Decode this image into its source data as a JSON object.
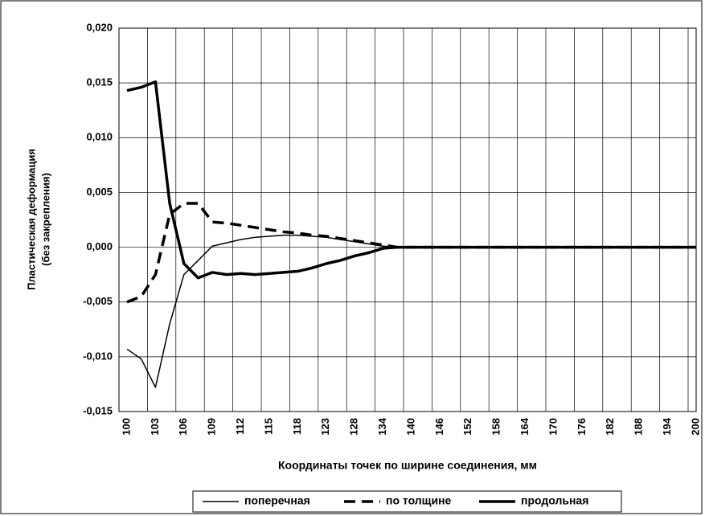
{
  "chart_data": {
    "type": "line",
    "y_label": [
      "Пластическая деформация",
      "(без закрепления)"
    ],
    "x_label": "Координаты точек по ширине соединения, мм",
    "categories": [
      "100",
      null,
      "103",
      null,
      "106",
      null,
      "109",
      null,
      "112",
      null,
      "115",
      null,
      "118",
      null,
      "123",
      null,
      "128",
      null,
      "134",
      null,
      "140",
      null,
      "146",
      null,
      "152",
      null,
      "158",
      null,
      "164",
      null,
      "170",
      null,
      "176",
      null,
      "182",
      null,
      "188",
      null,
      "194",
      null,
      "200"
    ],
    "series": [
      {
        "name": "поперечная",
        "color": "#000000",
        "style": "solid",
        "width": 1.5,
        "values": [
          -0.0093,
          -0.0102,
          -0.0128,
          -0.007,
          -0.0025,
          -0.0012,
          0.0001,
          0.0004,
          0.0007,
          0.0009,
          0.001,
          0.0011,
          0.0011,
          0.001,
          0.0009,
          0.0007,
          0.0005,
          0.0003,
          0.0001,
          0,
          0,
          0,
          0,
          0,
          0,
          0,
          0,
          0,
          0,
          0,
          0,
          0,
          0,
          0,
          0,
          0,
          0,
          0,
          0,
          0,
          0
        ]
      },
      {
        "name": "по толщине",
        "color": "#000000",
        "style": "dashed",
        "width": 3.5,
        "values": [
          -0.005,
          -0.0045,
          -0.0025,
          0.003,
          0.004,
          0.004,
          0.0023,
          0.0022,
          0.002,
          0.0018,
          0.0016,
          0.0014,
          0.0013,
          0.0011,
          0.001,
          0.0008,
          0.0006,
          0.0004,
          0.0002,
          0,
          0,
          0,
          0,
          0,
          0,
          0,
          0,
          0,
          0,
          0,
          0,
          0,
          0,
          0,
          0,
          0,
          0,
          0,
          0,
          0,
          0
        ]
      },
      {
        "name": "продольная",
        "color": "#000000",
        "style": "solid",
        "width": 3.5,
        "values": [
          0.0143,
          0.0146,
          0.0151,
          0.004,
          -0.0015,
          -0.0028,
          -0.0023,
          -0.0025,
          -0.0024,
          -0.0025,
          -0.0024,
          -0.0023,
          -0.0022,
          -0.0019,
          -0.0015,
          -0.0012,
          -0.0008,
          -0.0005,
          -0.0001,
          0,
          0,
          0,
          0,
          0,
          0,
          0,
          0,
          0,
          0,
          0,
          0,
          0,
          0,
          0,
          0,
          0,
          0,
          0,
          0,
          0,
          0
        ]
      }
    ],
    "ylim": [
      -0.015,
      0.02
    ],
    "yticks": [
      {
        "value": -0.015,
        "label": "-0,015"
      },
      {
        "value": -0.01,
        "label": "-0,010"
      },
      {
        "value": -0.005,
        "label": "-0,005"
      },
      {
        "value": 0,
        "label": "0,000"
      },
      {
        "value": 0.005,
        "label": "0,005"
      },
      {
        "value": 0.01,
        "label": "0,010"
      },
      {
        "value": 0.015,
        "label": "0,015"
      },
      {
        "value": 0.02,
        "label": "0,020"
      }
    ],
    "grid": true,
    "legend": "bottom"
  }
}
